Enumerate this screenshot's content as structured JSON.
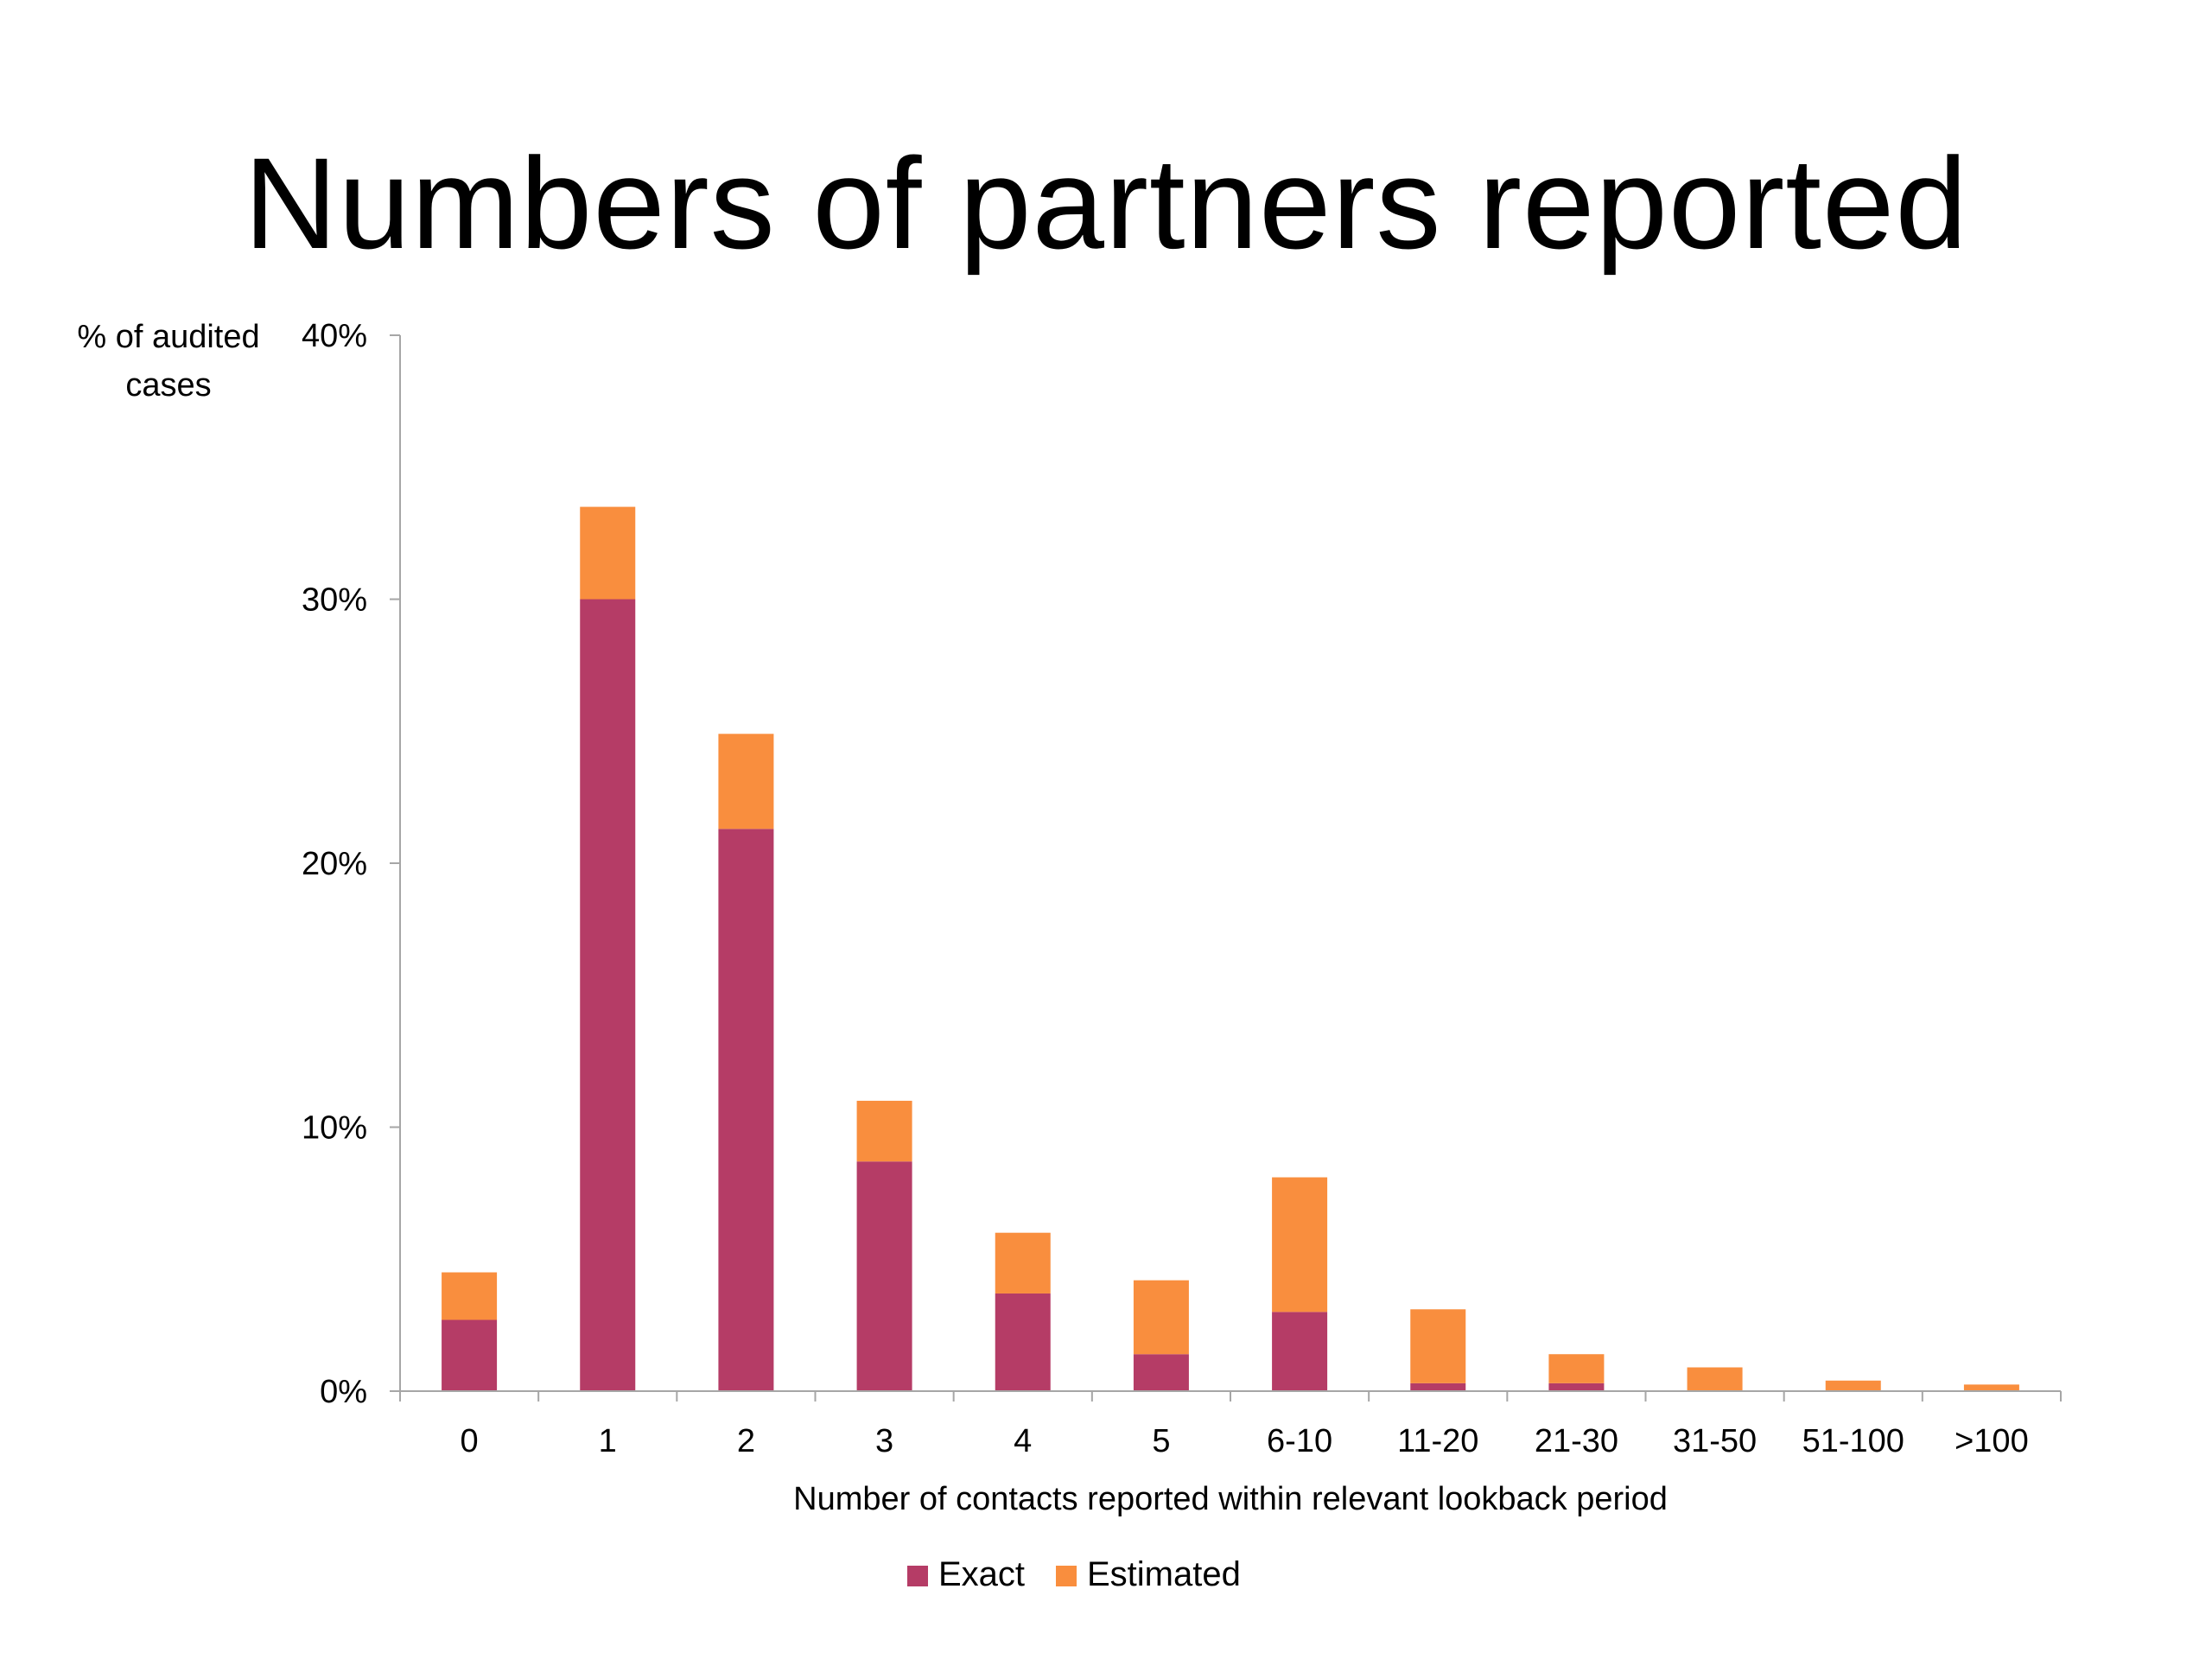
{
  "slide": {
    "title": "Numbers of partners reported"
  },
  "chart_data": {
    "type": "bar",
    "stacked": true,
    "categories": [
      "0",
      "1",
      "2",
      "3",
      "4",
      "5",
      "6-10",
      "11-20",
      "21-30",
      "31-50",
      "51-100",
      ">100"
    ],
    "series": [
      {
        "name": "Exact",
        "color": "#b53c66",
        "values": [
          2.7,
          30.0,
          21.3,
          8.7,
          3.7,
          1.4,
          3.0,
          0.3,
          0.3,
          0.0,
          0.0,
          0.0
        ]
      },
      {
        "name": "Estimated",
        "color": "#f98e3e",
        "values": [
          1.8,
          3.5,
          3.6,
          2.3,
          2.3,
          2.8,
          5.1,
          2.8,
          1.1,
          0.9,
          0.4,
          0.25
        ]
      }
    ],
    "ylabel": "% of audited cases",
    "xlabel": "Number of contacts reported within relevant lookback period",
    "ylim": [
      0,
      40
    ],
    "yticks": [
      0,
      10,
      20,
      30,
      40
    ],
    "ytick_labels": [
      "0%",
      "10%",
      "20%",
      "30%",
      "40%"
    ],
    "grid": false,
    "legend_position": "bottom-center"
  }
}
